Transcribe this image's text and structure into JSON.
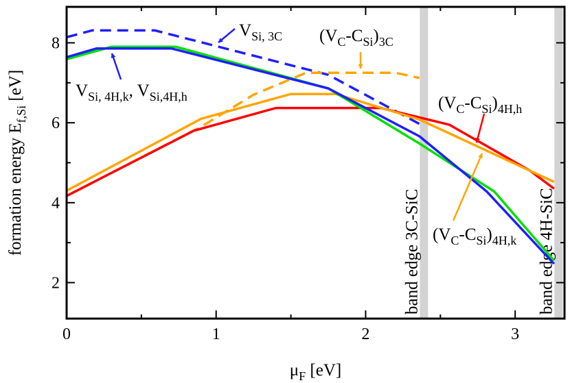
{
  "chart_data": {
    "type": "line",
    "xlabel": [
      {
        "text": "μ"
      },
      {
        "text": "F",
        "sub": true
      },
      {
        "text": " [eV]"
      }
    ],
    "ylabel": [
      {
        "text": "formation energy E"
      },
      {
        "text": "f,Si",
        "sub": true
      },
      {
        "text": " [eV]"
      }
    ],
    "xlim": [
      0,
      3.33
    ],
    "ylim": [
      1.1,
      8.9
    ],
    "xticks": [
      0,
      1,
      2,
      3
    ],
    "yticks": [
      2,
      4,
      6,
      8
    ],
    "xminorticks": [
      0.5,
      1.5,
      2.5
    ],
    "yminorticks": [
      3,
      5,
      7
    ],
    "band_edges": [
      {
        "x": 2.39,
        "label": "band edge 3C-SiC"
      },
      {
        "x": 3.29,
        "label": "band edge 4H-SiC"
      }
    ],
    "series": [
      {
        "color": "#1f1fff",
        "dashed": true,
        "x": [
          0,
          0.17,
          0.59,
          1.75,
          2.36
        ],
        "values": [
          8.14,
          8.31,
          8.31,
          7.2,
          5.97
        ]
      },
      {
        "color": "#ffa500",
        "dashed": true,
        "x": [
          0,
          0.9,
          1.25,
          1.6,
          2.2,
          2.36
        ],
        "values": [
          4.17,
          5.9,
          6.7,
          7.25,
          7.25,
          7.12
        ]
      },
      {
        "color": "#ff0000",
        "dashed": false,
        "x": [
          0,
          0.85,
          1.4,
          2.1,
          2.56,
          3.1,
          3.26
        ],
        "values": [
          4.17,
          5.8,
          6.37,
          6.37,
          5.95,
          4.8,
          4.35
        ]
      },
      {
        "color": "#ffa500",
        "dashed": false,
        "x": [
          0,
          0.9,
          1.5,
          1.8,
          2.36,
          3.26
        ],
        "values": [
          4.3,
          6.1,
          6.72,
          6.72,
          6.08,
          4.52
        ]
      },
      {
        "color": "#00e000",
        "dashed": false,
        "x": [
          0,
          0.3,
          0.73,
          1.75,
          2.36,
          2.86,
          3.26
        ],
        "values": [
          7.59,
          7.9,
          7.9,
          6.86,
          5.48,
          4.28,
          2.55
        ]
      },
      {
        "color": "#1f1fff",
        "dashed": false,
        "x": [
          0,
          0.2,
          0.7,
          1.75,
          2.36,
          2.81,
          3.26
        ],
        "values": [
          7.64,
          7.86,
          7.86,
          6.86,
          5.66,
          4.28,
          2.47
        ]
      }
    ],
    "annotations": [
      {
        "color": "#1f1fff",
        "parts": [
          {
            "text": "V"
          },
          {
            "text": "Si, 3C",
            "sub": true
          }
        ]
      },
      {
        "color": "#1f1fff",
        "parts": [
          {
            "text": "V"
          },
          {
            "text": "Si, 4H,k",
            "sub": true
          },
          {
            "text": ", V"
          },
          {
            "text": "Si,4H,h",
            "sub": true
          }
        ]
      },
      {
        "color": "#ffa500",
        "parts": [
          {
            "text": "(V"
          },
          {
            "text": "C",
            "sub": true
          },
          {
            "text": "-C"
          },
          {
            "text": "Si",
            "sub": true
          },
          {
            "text": ")"
          },
          {
            "text": "3C",
            "sub": true
          }
        ]
      },
      {
        "color": "#ff0000",
        "parts": [
          {
            "text": "(V"
          },
          {
            "text": "C",
            "sub": true
          },
          {
            "text": "-C"
          },
          {
            "text": "Si",
            "sub": true
          },
          {
            "text": ")"
          },
          {
            "text": "4H,h",
            "sub": true
          }
        ]
      },
      {
        "color": "#ffa500",
        "parts": [
          {
            "text": "(V"
          },
          {
            "text": "C",
            "sub": true
          },
          {
            "text": "-C"
          },
          {
            "text": "Si",
            "sub": true
          },
          {
            "text": ")"
          },
          {
            "text": "4H,k",
            "sub": true
          }
        ]
      }
    ]
  }
}
